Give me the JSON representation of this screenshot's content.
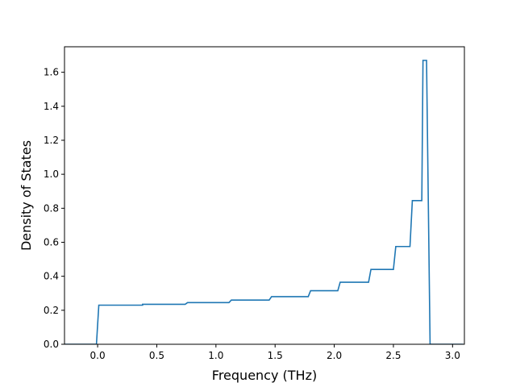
{
  "chart_data": {
    "type": "line",
    "title": "",
    "xlabel": "Frequency (THz)",
    "ylabel": "Density of States",
    "xlim": [
      -0.28,
      3.1
    ],
    "ylim": [
      0.0,
      1.75
    ],
    "xticks": [
      0.0,
      0.5,
      1.0,
      1.5,
      2.0,
      2.5,
      3.0
    ],
    "xtick_labels": [
      "0.0",
      "0.5",
      "1.0",
      "1.5",
      "2.0",
      "2.5",
      "3.0"
    ],
    "yticks": [
      0.0,
      0.2,
      0.4,
      0.6,
      0.8,
      1.0,
      1.2,
      1.4,
      1.6
    ],
    "ytick_labels": [
      "0.0",
      "0.2",
      "0.4",
      "0.6",
      "0.8",
      "1.0",
      "1.2",
      "1.4",
      "1.6"
    ],
    "grid": false,
    "series": [
      {
        "color": "#1f77b4",
        "x": [
          -0.28,
          -0.01,
          0.01,
          0.38,
          0.38,
          0.74,
          0.76,
          1.11,
          1.13,
          1.45,
          1.47,
          1.78,
          1.8,
          2.03,
          2.05,
          2.29,
          2.31,
          2.5,
          2.52,
          2.64,
          2.66,
          2.74,
          2.75,
          2.78,
          2.81,
          2.81,
          3.09
        ],
        "y": [
          0.0,
          0.0,
          0.23,
          0.23,
          0.235,
          0.235,
          0.245,
          0.245,
          0.26,
          0.26,
          0.28,
          0.28,
          0.315,
          0.315,
          0.365,
          0.365,
          0.44,
          0.44,
          0.575,
          0.575,
          0.845,
          0.845,
          1.67,
          1.67,
          0.0,
          0.0,
          0.0
        ]
      }
    ]
  }
}
